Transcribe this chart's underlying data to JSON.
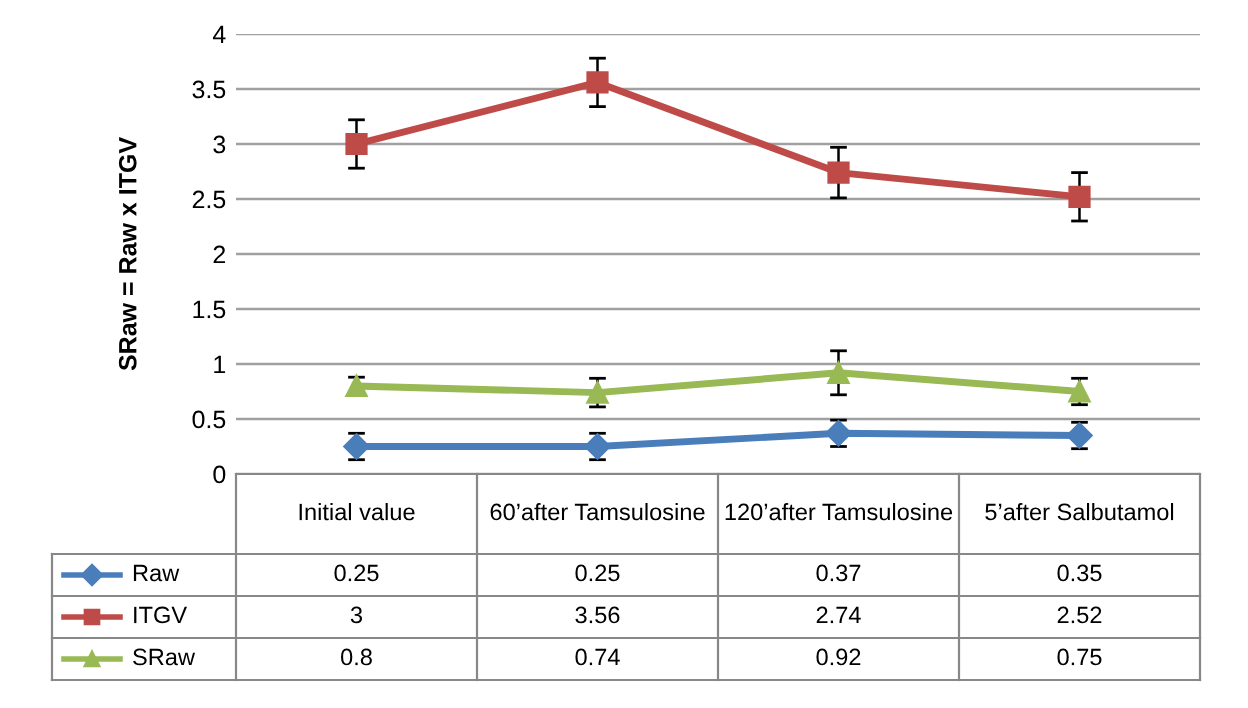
{
  "chart_data": {
    "type": "line",
    "ylabel": "SRaw = Raw x ITGV",
    "categories": [
      "Initial value",
      "60’after Tamsulosine",
      "120’after Tamsulosine",
      "5’after Salbutamol"
    ],
    "series": [
      {
        "name": "Raw",
        "color": "#4a7ebb",
        "marker": "diamond",
        "values": [
          0.25,
          0.25,
          0.37,
          0.35
        ],
        "errors": [
          0.12,
          0.12,
          0.12,
          0.12
        ]
      },
      {
        "name": "ITGV",
        "color": "#be4b48",
        "marker": "square",
        "values": [
          3,
          3.56,
          2.74,
          2.52
        ],
        "errors": [
          0.22,
          0.22,
          0.23,
          0.22
        ]
      },
      {
        "name": "SRaw",
        "color": "#98b954",
        "marker": "triangle",
        "values": [
          0.8,
          0.74,
          0.92,
          0.75
        ],
        "errors": [
          0.08,
          0.13,
          0.2,
          0.12
        ]
      }
    ],
    "ylim": [
      0,
      4
    ],
    "yticks": [
      0,
      0.5,
      1,
      1.5,
      2,
      2.5,
      3,
      3.5,
      4
    ],
    "grid": "y",
    "data_labels": true,
    "legend": "bottom",
    "line_style": "solid"
  }
}
